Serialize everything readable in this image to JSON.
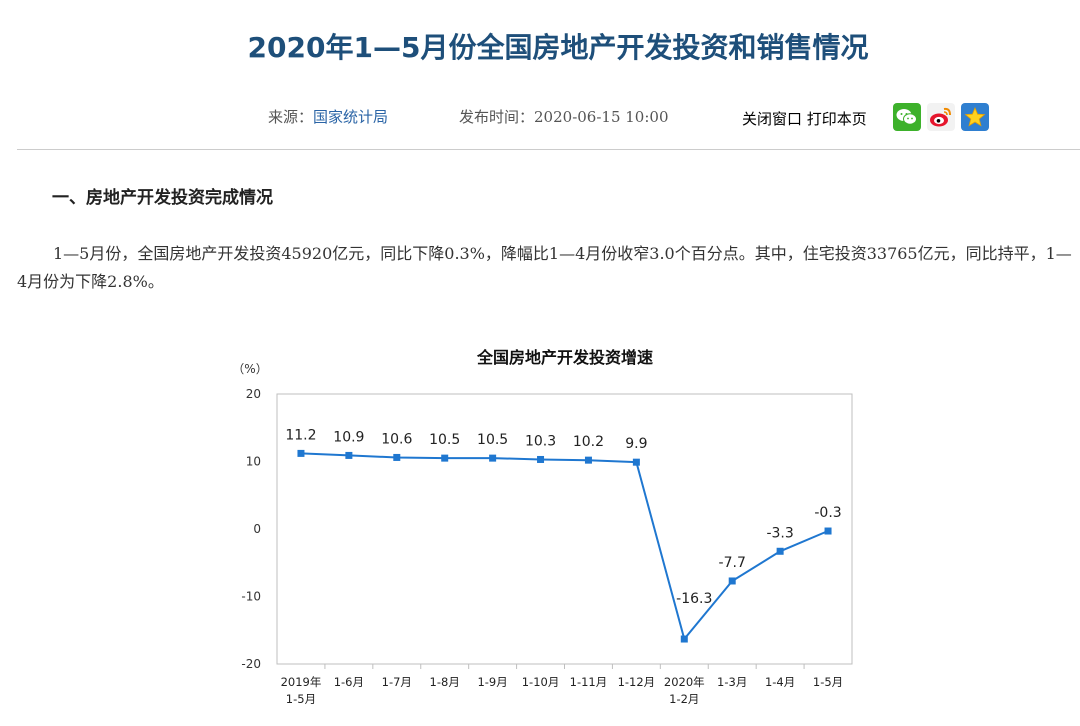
{
  "article": {
    "title": "2020年1—5月份全国房地产开发投资和销售情况",
    "source_label": "来源：",
    "source_value": "国家统计局",
    "publish_label": "发布时间：",
    "publish_time": "2020-06-15 10:00",
    "close_window": "关闭窗口",
    "print_page": "打印本页",
    "share_icons": [
      "wechat-icon",
      "weibo-icon",
      "favorite-star-icon"
    ],
    "section_heading": "一、房地产开发投资完成情况",
    "paragraph": "1—5月份，全国房地产开发投资45920亿元，同比下降0.3%，降幅比1—4月份收窄3.0个百分点。其中，住宅投资33765亿元，同比持平，1—4月份为下降2.8%。"
  },
  "colors": {
    "title": "#1e4f7a",
    "link": "#2a64a6",
    "series": "#1f77d0"
  },
  "chart_data": {
    "type": "line",
    "title": "全国房地产开发投资增速",
    "ylabel": "（%）",
    "ylim": [
      -20,
      20
    ],
    "yticks": [
      20,
      10,
      0,
      -10,
      -20
    ],
    "categories": [
      [
        "2019年",
        "1-5月"
      ],
      [
        "1-6月"
      ],
      [
        "1-7月"
      ],
      [
        "1-8月"
      ],
      [
        "1-9月"
      ],
      [
        "1-10月"
      ],
      [
        "1-11月"
      ],
      [
        "1-12月"
      ],
      [
        "2020年",
        "1-2月"
      ],
      [
        "1-3月"
      ],
      [
        "1-4月"
      ],
      [
        "1-5月"
      ]
    ],
    "series": [
      {
        "values": [
          11.2,
          10.9,
          10.6,
          10.5,
          10.5,
          10.3,
          10.2,
          9.9,
          -16.3,
          -7.7,
          -3.3,
          -0.3
        ]
      }
    ],
    "data_labels": [
      "11.2",
      "10.9",
      "10.6",
      "10.5",
      "10.5",
      "10.3",
      "10.2",
      "9.9",
      "-16.3",
      "-7.7",
      "-3.3",
      "-0.3"
    ],
    "grid": false
  }
}
